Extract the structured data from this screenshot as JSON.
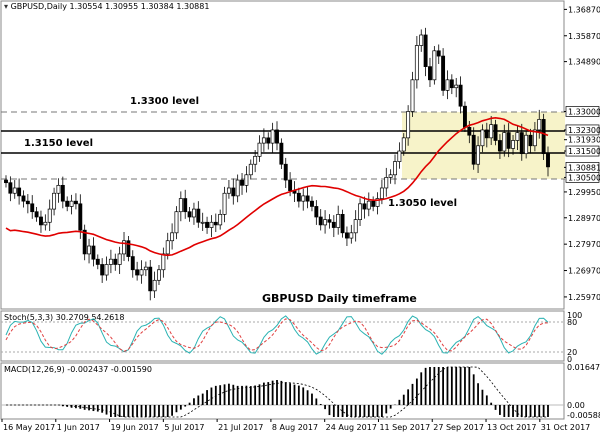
{
  "main_panel": {
    "header": "GBPUSD,Daily  1.30554 1.30955 1.30384 1.30881",
    "annotation": "GBPUSD Daily timeframe",
    "levels": [
      {
        "label": "1.3300 level",
        "price": 1.33,
        "style": "dashed"
      },
      {
        "label": "1.3150 level",
        "price": 1.315,
        "style": "solid"
      },
      {
        "label": "1.3050 level",
        "price": 1.305,
        "style": "dashed"
      }
    ],
    "extra_line": {
      "price": 1.323,
      "style": "solid"
    },
    "price_axis": [
      "1.36870",
      "1.35870",
      "1.34890",
      "1.33000",
      "1.32300",
      "1.31930",
      "1.31500",
      "1.30881",
      "1.30500",
      "1.29950",
      "1.28970",
      "1.27970",
      "1.26970",
      "1.25970"
    ],
    "highlight_labels": [
      "1.33000",
      "1.32300",
      "1.31500",
      "1.30881",
      "1.30500"
    ]
  },
  "stoch_panel": {
    "header": "Stoch(5,3,3) 30.2709 54.2618",
    "axis": [
      "100",
      "80",
      "20",
      "0"
    ]
  },
  "macd_panel": {
    "header": "MACD(12,26,9) -0.002437 -0.001590",
    "axis": [
      "0.016477",
      "0.00",
      "-0.005881"
    ]
  },
  "date_axis": [
    "16 May 2017",
    "1 Jun 2017",
    "19 Jun 2017",
    "5 Jul 2017",
    "21 Jul 2017",
    "8 Aug 2017",
    "24 Aug 2017",
    "11 Sep 2017",
    "27 Sep 2017",
    "13 Oct 2017",
    "31 Oct 2017"
  ],
  "chart_data": {
    "type": "candlestick",
    "symbol": "GBPUSD",
    "timeframe": "Daily",
    "ohlc_last": {
      "open": 1.30554,
      "high": 1.30955,
      "low": 1.30384,
      "close": 1.30881
    },
    "closes": [
      1.303,
      1.299,
      1.301,
      1.298,
      1.296,
      1.295,
      1.292,
      1.29,
      1.287,
      1.288,
      1.293,
      1.299,
      1.302,
      1.296,
      1.294,
      1.296,
      1.295,
      1.285,
      1.276,
      1.279,
      1.274,
      1.272,
      1.268,
      1.272,
      1.274,
      1.272,
      1.276,
      1.281,
      1.275,
      1.27,
      1.268,
      1.27,
      1.271,
      1.262,
      1.266,
      1.27,
      1.276,
      1.281,
      1.284,
      1.292,
      1.297,
      1.292,
      1.29,
      1.293,
      1.288,
      1.288,
      1.286,
      1.288,
      1.287,
      1.291,
      1.299,
      1.301,
      1.298,
      1.304,
      1.302,
      1.306,
      1.31,
      1.313,
      1.318,
      1.32,
      1.318,
      1.323,
      1.318,
      1.31,
      1.304,
      1.3,
      1.299,
      1.296,
      1.298,
      1.296,
      1.294,
      1.29,
      1.287,
      1.289,
      1.288,
      1.286,
      1.291,
      1.284,
      1.282,
      1.284,
      1.289,
      1.295,
      1.293,
      1.296,
      1.294,
      1.297,
      1.301,
      1.305,
      1.306,
      1.311,
      1.315,
      1.32,
      1.33,
      1.342,
      1.355,
      1.359,
      1.347,
      1.342,
      1.353,
      1.351,
      1.338,
      1.342,
      1.339,
      1.34,
      1.332,
      1.324,
      1.321,
      1.31,
      1.317,
      1.323,
      1.32,
      1.325,
      1.319,
      1.315,
      1.322,
      1.316,
      1.319,
      1.322,
      1.314,
      1.321,
      1.317,
      1.323,
      1.327,
      1.314,
      1.309
    ],
    "sma_start": 1.26,
    "sma_end": 1.323,
    "price_range": [
      1.2555,
      1.3715
    ]
  }
}
